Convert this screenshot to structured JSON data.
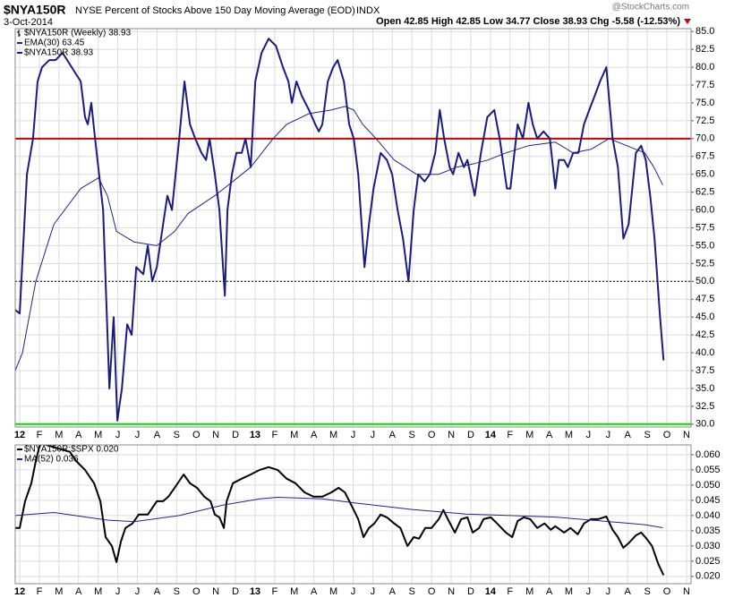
{
  "chart_data": [
    {
      "type": "line",
      "symbol": "$NYA150R",
      "title": "NYSE Percent of Stocks Above 150 Day Moving Average (EOD)",
      "exchange": "INDX",
      "date": "3-Oct-2014",
      "quote": "Open 42.85  High 42.85  Low 34.77  Close 38.93  Chg -5.58 (-12.53%)",
      "watermark": "@StockCharts.com",
      "legend_header": "$NYA150R (Weekly) 38.93",
      "xlim": [
        -0.23,
        34.23
      ],
      "xticks": [
        {
          "value": 0,
          "label": "12"
        },
        {
          "value": 1,
          "label": "F"
        },
        {
          "value": 2,
          "label": "M"
        },
        {
          "value": 3,
          "label": "A"
        },
        {
          "value": 4,
          "label": "M"
        },
        {
          "value": 5,
          "label": "J"
        },
        {
          "value": 6,
          "label": "J"
        },
        {
          "value": 7,
          "label": "A"
        },
        {
          "value": 8,
          "label": "S"
        },
        {
          "value": 9,
          "label": "O"
        },
        {
          "value": 10,
          "label": "N"
        },
        {
          "value": 11,
          "label": "D"
        },
        {
          "value": 12,
          "label": "13"
        },
        {
          "value": 13,
          "label": "F"
        },
        {
          "value": 14,
          "label": "M"
        },
        {
          "value": 15,
          "label": "A"
        },
        {
          "value": 16,
          "label": "M"
        },
        {
          "value": 17,
          "label": "J"
        },
        {
          "value": 18,
          "label": "J"
        },
        {
          "value": 19,
          "label": "A"
        },
        {
          "value": 20,
          "label": "S"
        },
        {
          "value": 21,
          "label": "O"
        },
        {
          "value": 22,
          "label": "N"
        },
        {
          "value": 23,
          "label": "D"
        },
        {
          "value": 24,
          "label": "14"
        },
        {
          "value": 25,
          "label": "F"
        },
        {
          "value": 26,
          "label": "M"
        },
        {
          "value": 27,
          "label": "A"
        },
        {
          "value": 28,
          "label": "M"
        },
        {
          "value": 29,
          "label": "J"
        },
        {
          "value": 30,
          "label": "J"
        },
        {
          "value": 31,
          "label": "A"
        },
        {
          "value": 32,
          "label": "S"
        },
        {
          "value": 33,
          "label": "O"
        },
        {
          "value": 34,
          "label": "N"
        }
      ],
      "ylim": [
        29.6,
        85.4
      ],
      "yticks": [
        {
          "value": 30,
          "label": "30.0"
        },
        32.5,
        {
          "value": 35,
          "label": "35.0"
        },
        37.5,
        {
          "value": 40,
          "label": "40.0"
        },
        42.5,
        {
          "value": 45,
          "label": "45.0"
        },
        47.5,
        {
          "value": 50,
          "label": "50.0"
        },
        52.5,
        {
          "value": 55,
          "label": "55.0"
        },
        57.5,
        {
          "value": 60,
          "label": "60.0"
        },
        62.5,
        {
          "value": 65,
          "label": "65.0"
        },
        67.5,
        {
          "value": 70,
          "label": "70.0"
        },
        72.5,
        {
          "value": 75,
          "label": "75.0"
        },
        77.5,
        {
          "value": 80,
          "label": "80.0"
        },
        82.5,
        {
          "value": 85,
          "label": "85.0"
        }
      ],
      "grid": true,
      "hlines": [
        {
          "value": 70,
          "color": "#cc0000",
          "style": "solid"
        },
        {
          "value": 50,
          "color": "#000000",
          "style": "dotted"
        },
        {
          "value": 30,
          "color": "#00dd00",
          "style": "solid"
        }
      ],
      "series": [
        {
          "name": "EMA(30) 63.45",
          "color": "#23238c",
          "width": 1,
          "x": [
            -0.23,
            0.14,
            0.82,
            1.74,
            3.11,
            4.02,
            4.47,
            4.93,
            5.84,
            6.99,
            7.9,
            8.58,
            9.95,
            10.87,
            11.78,
            12.92,
            13.61,
            14.75,
            15.89,
            16.58,
            17.03,
            17.49,
            18.17,
            19.09,
            20.23,
            21.37,
            22.28,
            23.2,
            23.88,
            24.79,
            25.94,
            27.31,
            28.22,
            29.13,
            30.05,
            30.96,
            31.87,
            32.33,
            32.79
          ],
          "values": [
            37.5,
            40,
            50,
            58,
            63,
            64.5,
            62,
            57,
            55.5,
            55,
            57,
            59.5,
            62,
            64,
            66,
            70,
            72,
            73.5,
            74,
            74.5,
            74,
            72,
            70,
            67,
            65,
            65,
            66,
            66.5,
            67,
            68,
            69,
            69.5,
            68,
            68.5,
            70,
            69,
            68,
            66,
            63.5
          ]
        },
        {
          "name": "$NYA150R 38.93",
          "color": "#1c1c80",
          "width": 2,
          "x": [
            -0.23,
            0,
            0.37,
            0.68,
            0.91,
            1.14,
            1.51,
            1.83,
            2.19,
            2.65,
            3.11,
            3.33,
            3.47,
            3.65,
            3.84,
            4.25,
            4.57,
            4.79,
            4.98,
            5.21,
            5.48,
            5.71,
            5.94,
            6.3,
            6.53,
            6.76,
            6.99,
            7.31,
            7.53,
            7.76,
            8.13,
            8.4,
            8.68,
            8.95,
            9.27,
            9.5,
            9.68,
            9.95,
            10.18,
            10.46,
            10.59,
            10.82,
            11.05,
            11.32,
            11.51,
            11.78,
            12.01,
            12.33,
            12.69,
            13.06,
            13.42,
            13.7,
            13.88,
            14.11,
            14.38,
            14.75,
            15.07,
            15.25,
            15.43,
            15.71,
            15.98,
            16.21,
            16.53,
            16.8,
            17.03,
            17.26,
            17.58,
            17.81,
            18.04,
            18.4,
            18.72,
            18.99,
            19.27,
            19.54,
            19.82,
            20.09,
            20.32,
            20.64,
            20.91,
            21.19,
            21.42,
            21.64,
            21.92,
            22.1,
            22.37,
            22.65,
            22.83,
            23.2,
            23.52,
            23.84,
            24.2,
            24.47,
            24.84,
            25.02,
            25.39,
            25.66,
            25.94,
            26.16,
            26.39,
            26.71,
            27.03,
            27.31,
            27.49,
            27.76,
            27.95,
            28.22,
            28.49,
            28.77,
            29.04,
            29.32,
            29.59,
            29.91,
            30.23,
            30.5,
            30.78,
            31.05,
            31.42,
            31.69,
            31.92,
            32.15,
            32.37,
            32.65,
            32.83
          ],
          "values": [
            46,
            45.5,
            65,
            70,
            78,
            80,
            81,
            81,
            82,
            80,
            78,
            73,
            72,
            75,
            70,
            60,
            35,
            45,
            30.5,
            35,
            44,
            42.5,
            52,
            51,
            55,
            50,
            52,
            58,
            62,
            60,
            70,
            78,
            72,
            70,
            68,
            67,
            70,
            65,
            60,
            48,
            60,
            65,
            68,
            68,
            70,
            66,
            78,
            82,
            84,
            83,
            80,
            78,
            75,
            78,
            76,
            74,
            72,
            71,
            72,
            78,
            80,
            81,
            78,
            72,
            70,
            65,
            52,
            58,
            63,
            68,
            67,
            65,
            60,
            56,
            50,
            60,
            65,
            64,
            65,
            68,
            74,
            70,
            66,
            65,
            68,
            66,
            67,
            62,
            68,
            73,
            74,
            70,
            63,
            63,
            72,
            70,
            75,
            72,
            70,
            71,
            70,
            63,
            67,
            67,
            66,
            68,
            68,
            72,
            74,
            76,
            78,
            80,
            70,
            66,
            56,
            58,
            68,
            69,
            67,
            62,
            56,
            45,
            38.93
          ]
        }
      ]
    },
    {
      "type": "line",
      "xlim": [
        -0.23,
        34.23
      ],
      "xticks": [
        {
          "value": 0,
          "label": "12"
        },
        {
          "value": 1,
          "label": "F"
        },
        {
          "value": 2,
          "label": "M"
        },
        {
          "value": 3,
          "label": "A"
        },
        {
          "value": 4,
          "label": "M"
        },
        {
          "value": 5,
          "label": "J"
        },
        {
          "value": 6,
          "label": "J"
        },
        {
          "value": 7,
          "label": "A"
        },
        {
          "value": 8,
          "label": "S"
        },
        {
          "value": 9,
          "label": "O"
        },
        {
          "value": 10,
          "label": "N"
        },
        {
          "value": 11,
          "label": "D"
        },
        {
          "value": 12,
          "label": "13"
        },
        {
          "value": 13,
          "label": "F"
        },
        {
          "value": 14,
          "label": "M"
        },
        {
          "value": 15,
          "label": "A"
        },
        {
          "value": 16,
          "label": "M"
        },
        {
          "value": 17,
          "label": "J"
        },
        {
          "value": 18,
          "label": "J"
        },
        {
          "value": 19,
          "label": "A"
        },
        {
          "value": 20,
          "label": "S"
        },
        {
          "value": 21,
          "label": "O"
        },
        {
          "value": 22,
          "label": "N"
        },
        {
          "value": 23,
          "label": "D"
        },
        {
          "value": 24,
          "label": "14"
        },
        {
          "value": 25,
          "label": "F"
        },
        {
          "value": 26,
          "label": "M"
        },
        {
          "value": 27,
          "label": "A"
        },
        {
          "value": 28,
          "label": "M"
        },
        {
          "value": 29,
          "label": "J"
        },
        {
          "value": 30,
          "label": "J"
        },
        {
          "value": 31,
          "label": "A"
        },
        {
          "value": 32,
          "label": "S"
        },
        {
          "value": 33,
          "label": "O"
        },
        {
          "value": 34,
          "label": "N"
        }
      ],
      "ylim": [
        0.0176,
        0.0632
      ],
      "yticks": [
        {
          "value": 0.02,
          "label": "0.020"
        },
        0.025,
        {
          "value": 0.03,
          "label": "0.030"
        },
        0.035,
        {
          "value": 0.04,
          "label": "0.040"
        },
        0.045,
        {
          "value": 0.05,
          "label": "0.050"
        },
        0.055,
        {
          "value": 0.06,
          "label": "0.060"
        }
      ],
      "grid": true,
      "series": [
        {
          "name": "$NYA150R:$SPX 0.020",
          "color": "#000000",
          "width": 2,
          "x": [
            -0.23,
            0,
            0.27,
            0.59,
            0.82,
            1.05,
            2.56,
            2.88,
            3.33,
            3.79,
            4.11,
            4.38,
            4.7,
            4.93,
            5.16,
            5.39,
            5.75,
            6.07,
            6.53,
            6.99,
            7.31,
            7.58,
            7.9,
            8.36,
            8.68,
            9.04,
            9.41,
            9.73,
            9.95,
            10.18,
            10.41,
            10.55,
            10.87,
            11.32,
            11.78,
            12.24,
            12.69,
            13.15,
            13.61,
            14.06,
            14.52,
            14.98,
            15.43,
            15.89,
            16.26,
            16.58,
            17.03,
            17.26,
            17.53,
            17.81,
            18.08,
            18.4,
            18.72,
            19.09,
            19.41,
            19.77,
            20.09,
            20.36,
            20.68,
            21.0,
            21.37,
            21.6,
            21.83,
            22.19,
            22.51,
            22.83,
            23.1,
            23.42,
            23.65,
            24.02,
            24.34,
            24.79,
            25.11,
            25.39,
            25.71,
            26.03,
            26.39,
            26.76,
            27.08,
            27.31,
            27.76,
            28.08,
            28.45,
            28.77,
            29.13,
            29.5,
            29.91,
            30.23,
            30.5,
            30.78,
            31.05,
            31.42,
            31.69,
            31.96,
            32.24,
            32.56,
            32.83
          ],
          "values": [
            0.0359,
            0.0359,
            0.0447,
            0.0506,
            0.0579,
            0.0638,
            0.0609,
            0.0579,
            0.055,
            0.0506,
            0.0447,
            0.0329,
            0.03,
            0.0247,
            0.0315,
            0.0359,
            0.0374,
            0.0403,
            0.0403,
            0.0447,
            0.0447,
            0.0462,
            0.0491,
            0.0535,
            0.0506,
            0.0491,
            0.0462,
            0.0447,
            0.0403,
            0.0394,
            0.0359,
            0.0447,
            0.0506,
            0.0521,
            0.0535,
            0.055,
            0.0559,
            0.055,
            0.0521,
            0.0506,
            0.0476,
            0.0462,
            0.0462,
            0.0476,
            0.0491,
            0.0476,
            0.0418,
            0.0388,
            0.0329,
            0.0359,
            0.0374,
            0.0403,
            0.0394,
            0.0374,
            0.0359,
            0.03,
            0.0329,
            0.0324,
            0.0359,
            0.0359,
            0.0388,
            0.0418,
            0.0388,
            0.0344,
            0.0388,
            0.0394,
            0.0344,
            0.0359,
            0.0388,
            0.0394,
            0.0374,
            0.0344,
            0.0329,
            0.0382,
            0.0394,
            0.0388,
            0.0359,
            0.0374,
            0.0353,
            0.0365,
            0.0344,
            0.0359,
            0.0338,
            0.0374,
            0.0388,
            0.0388,
            0.0397,
            0.0353,
            0.0329,
            0.0294,
            0.0309,
            0.0335,
            0.0344,
            0.0324,
            0.03,
            0.0241,
            0.0204
          ]
        },
        {
          "name": "MA(52) 0.036",
          "color": "#23238c",
          "width": 1,
          "x": [
            -0.23,
            1.74,
            4.47,
            5.84,
            8.13,
            10.41,
            12.24,
            13.15,
            15.43,
            17.26,
            20.0,
            22.74,
            25.02,
            27.31,
            29.13,
            30.96,
            31.87,
            32.79
          ],
          "values": [
            0.04,
            0.041,
            0.0385,
            0.038,
            0.04,
            0.0435,
            0.0455,
            0.046,
            0.0455,
            0.044,
            0.042,
            0.0405,
            0.04,
            0.0395,
            0.0385,
            0.0375,
            0.037,
            0.036
          ]
        }
      ]
    }
  ]
}
